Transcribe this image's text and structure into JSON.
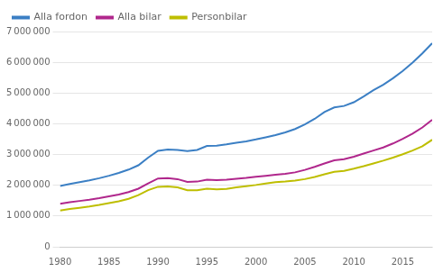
{
  "chart_data": {
    "type": "line",
    "x": [
      1980,
      1981,
      1982,
      1983,
      1984,
      1985,
      1986,
      1987,
      1988,
      1989,
      1990,
      1991,
      1992,
      1993,
      1994,
      1995,
      1996,
      1997,
      1998,
      1999,
      2000,
      2001,
      2002,
      2003,
      2004,
      2005,
      2006,
      2007,
      2008,
      2009,
      2010,
      2011,
      2012,
      2013,
      2014,
      2015,
      2016,
      2017,
      2018
    ],
    "series": [
      {
        "name": "Alla fordon",
        "color": "#3B7FC4",
        "values": [
          1980000,
          2040000,
          2100000,
          2160000,
          2230000,
          2310000,
          2400000,
          2510000,
          2650000,
          2900000,
          3120000,
          3160000,
          3150000,
          3110000,
          3150000,
          3280000,
          3290000,
          3330000,
          3380000,
          3430000,
          3490000,
          3560000,
          3630000,
          3720000,
          3830000,
          3980000,
          4160000,
          4380000,
          4530000,
          4580000,
          4700000,
          4890000,
          5090000,
          5270000,
          5480000,
          5720000,
          5990000,
          6290000,
          6620000
        ]
      },
      {
        "name": "Alla bilar",
        "color": "#B0278C",
        "values": [
          1400000,
          1450000,
          1490000,
          1530000,
          1580000,
          1640000,
          1700000,
          1780000,
          1890000,
          2060000,
          2220000,
          2230000,
          2200000,
          2110000,
          2120000,
          2180000,
          2170000,
          2180000,
          2210000,
          2240000,
          2280000,
          2310000,
          2340000,
          2370000,
          2420000,
          2500000,
          2600000,
          2710000,
          2810000,
          2850000,
          2930000,
          3030000,
          3130000,
          3230000,
          3360000,
          3510000,
          3680000,
          3880000,
          4130000
        ]
      },
      {
        "name": "Personbilar",
        "color": "#BEBE00",
        "values": [
          1180000,
          1230000,
          1270000,
          1310000,
          1360000,
          1420000,
          1480000,
          1560000,
          1680000,
          1840000,
          1950000,
          1960000,
          1930000,
          1840000,
          1840000,
          1890000,
          1870000,
          1880000,
          1930000,
          1970000,
          2010000,
          2060000,
          2100000,
          2120000,
          2150000,
          2200000,
          2270000,
          2360000,
          2440000,
          2470000,
          2540000,
          2620000,
          2710000,
          2800000,
          2900000,
          3010000,
          3130000,
          3270000,
          3480000
        ]
      }
    ],
    "xlim": [
      1980,
      2018
    ],
    "xticks": [
      1980,
      1985,
      1990,
      1995,
      2000,
      2005,
      2010,
      2015
    ],
    "ylim": [
      0,
      7000000
    ],
    "yticks": [
      0,
      {
        "value": 1000000,
        "label": "1 000 000"
      },
      {
        "value": 2000000,
        "label": "2 000 000"
      },
      {
        "value": 3000000,
        "label": "3 000 000"
      },
      {
        "value": 4000000,
        "label": "4 000 000"
      },
      {
        "value": 5000000,
        "label": "5 000 000"
      },
      {
        "value": 6000000,
        "label": "6 000 000"
      },
      {
        "value": 7000000,
        "label": "7 000 000"
      }
    ],
    "grid": true,
    "legend": "upper left"
  }
}
